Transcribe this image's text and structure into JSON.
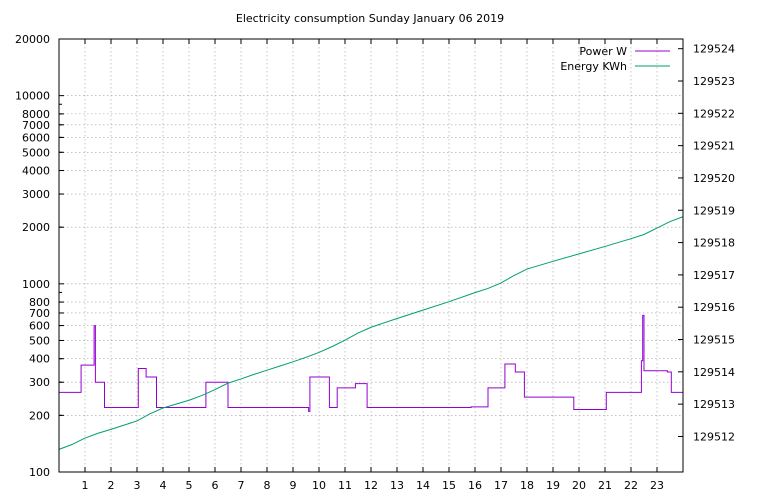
{
  "chart_data": {
    "type": "line",
    "title": "Electricity consumption Sunday January 06 2019",
    "xlabel": "",
    "ylabel": "",
    "x_range": [
      0,
      24
    ],
    "x_ticks": [
      1,
      2,
      3,
      4,
      5,
      6,
      7,
      8,
      9,
      10,
      11,
      12,
      13,
      14,
      15,
      16,
      17,
      18,
      19,
      20,
      21,
      22,
      23
    ],
    "y_left": {
      "scale": "log",
      "range": [
        100,
        20000
      ],
      "ticks": [
        100,
        200,
        300,
        400,
        500,
        600,
        700,
        800,
        1000,
        2000,
        3000,
        4000,
        5000,
        6000,
        7000,
        8000,
        10000,
        20000
      ]
    },
    "y_right": {
      "scale": "linear",
      "range": [
        129510.9,
        129524.3
      ],
      "ticks": [
        129512,
        129513,
        129514,
        129515,
        129516,
        129517,
        129518,
        129519,
        129520,
        129521,
        129522,
        129523,
        129524
      ]
    },
    "grid": true,
    "legend_position": "top-right",
    "series": [
      {
        "name": "Power W",
        "axis": "left",
        "step": true,
        "color": "#9400d3",
        "points": [
          [
            0,
            265
          ],
          [
            0.85,
            265
          ],
          [
            0.85,
            370
          ],
          [
            1.35,
            370
          ],
          [
            1.35,
            600
          ],
          [
            1.4,
            600
          ],
          [
            1.4,
            300
          ],
          [
            1.75,
            300
          ],
          [
            1.75,
            220
          ],
          [
            3.05,
            220
          ],
          [
            3.05,
            355
          ],
          [
            3.35,
            355
          ],
          [
            3.35,
            320
          ],
          [
            3.75,
            320
          ],
          [
            3.75,
            220
          ],
          [
            5.65,
            220
          ],
          [
            5.65,
            300
          ],
          [
            6.5,
            300
          ],
          [
            6.5,
            220
          ],
          [
            9.6,
            220
          ],
          [
            9.6,
            210
          ],
          [
            9.65,
            210
          ],
          [
            9.65,
            320
          ],
          [
            10.4,
            320
          ],
          [
            10.4,
            220
          ],
          [
            10.7,
            220
          ],
          [
            10.7,
            280
          ],
          [
            11.4,
            280
          ],
          [
            11.4,
            295
          ],
          [
            11.85,
            295
          ],
          [
            11.85,
            220
          ],
          [
            15.85,
            220
          ],
          [
            15.85,
            222
          ],
          [
            16.5,
            222
          ],
          [
            16.5,
            280
          ],
          [
            17.15,
            280
          ],
          [
            17.15,
            375
          ],
          [
            17.55,
            375
          ],
          [
            17.55,
            340
          ],
          [
            17.9,
            340
          ],
          [
            17.9,
            250
          ],
          [
            19.8,
            250
          ],
          [
            19.8,
            215
          ],
          [
            21.05,
            215
          ],
          [
            21.05,
            265
          ],
          [
            22.4,
            265
          ],
          [
            22.4,
            390
          ],
          [
            22.45,
            390
          ],
          [
            22.45,
            680
          ],
          [
            22.5,
            680
          ],
          [
            22.5,
            345
          ],
          [
            23.4,
            345
          ],
          [
            23.4,
            340
          ],
          [
            23.55,
            340
          ],
          [
            23.55,
            265
          ],
          [
            24,
            265
          ]
        ]
      },
      {
        "name": "Energy KWh",
        "axis": "right",
        "step": false,
        "color": "#009e73",
        "points": [
          [
            0,
            129511.6
          ],
          [
            0.5,
            129511.75
          ],
          [
            1,
            129511.95
          ],
          [
            1.5,
            129512.1
          ],
          [
            2,
            129512.22
          ],
          [
            2.5,
            129512.35
          ],
          [
            3,
            129512.48
          ],
          [
            3.5,
            129512.7
          ],
          [
            4,
            129512.88
          ],
          [
            4.5,
            129513.0
          ],
          [
            5,
            129513.12
          ],
          [
            5.5,
            129513.27
          ],
          [
            6,
            129513.45
          ],
          [
            6.5,
            129513.65
          ],
          [
            7,
            129513.78
          ],
          [
            7.5,
            129513.92
          ],
          [
            8,
            129514.05
          ],
          [
            8.5,
            129514.18
          ],
          [
            9,
            129514.31
          ],
          [
            9.5,
            129514.45
          ],
          [
            10,
            129514.6
          ],
          [
            10.5,
            129514.78
          ],
          [
            11,
            129514.98
          ],
          [
            11.5,
            129515.2
          ],
          [
            12,
            129515.38
          ],
          [
            13,
            129515.65
          ],
          [
            14,
            129515.91
          ],
          [
            15,
            129516.17
          ],
          [
            16,
            129516.45
          ],
          [
            16.5,
            129516.58
          ],
          [
            17,
            129516.75
          ],
          [
            17.5,
            129516.98
          ],
          [
            18,
            129517.18
          ],
          [
            19,
            129517.42
          ],
          [
            20,
            129517.65
          ],
          [
            21,
            129517.88
          ],
          [
            22,
            129518.12
          ],
          [
            22.5,
            129518.25
          ],
          [
            23,
            129518.45
          ],
          [
            23.5,
            129518.65
          ],
          [
            24,
            129518.8
          ]
        ]
      }
    ]
  }
}
